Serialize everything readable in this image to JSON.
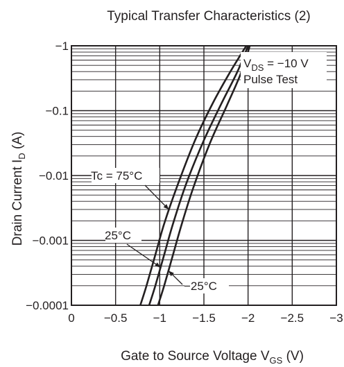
{
  "chart_data": {
    "type": "line",
    "title": "Typical Transfer Characteristics (2)",
    "xlabel": {
      "main": "Gate to Source Voltage",
      "symbol": "V",
      "subscript": "GS",
      "unit": "(V)"
    },
    "ylabel": {
      "main": "Drain Current",
      "symbol": "I",
      "subscript": "D",
      "unit": "(A)"
    },
    "xlim": [
      0,
      -3
    ],
    "ylim_abs": [
      0.0001,
      1
    ],
    "y_scale": "log",
    "grid": true,
    "x_ticks": [
      {
        "value": 0,
        "label": "0"
      },
      {
        "value": -0.5,
        "label": "−0.5"
      },
      {
        "value": -1,
        "label": "−1"
      },
      {
        "value": -1.5,
        "label": "−1.5"
      },
      {
        "value": -2,
        "label": "−2"
      },
      {
        "value": -2.5,
        "label": "−2.5"
      },
      {
        "value": -3,
        "label": "−3"
      }
    ],
    "y_ticks": [
      {
        "value": 1,
        "label": "−1"
      },
      {
        "value": 0.1,
        "label": "−0.1"
      },
      {
        "value": 0.01,
        "label": "−0.01"
      },
      {
        "value": 0.001,
        "label": "−0.001"
      },
      {
        "value": 0.0001,
        "label": "−0.0001"
      }
    ],
    "conditions": {
      "vds_symbol": "V",
      "vds_subscript": "DS",
      "vds_value": "= −10 V",
      "pulse": "Pulse Test"
    },
    "series": [
      {
        "name": "Tc = 75°C",
        "vgs": [
          -0.78,
          -0.85,
          -0.95,
          -1.05,
          -1.2,
          -1.4,
          -1.6,
          -1.8,
          -1.98
        ],
        "id_abs": [
          0.0001,
          0.0002,
          0.0006,
          0.0018,
          0.007,
          0.035,
          0.13,
          0.4,
          1.0
        ]
      },
      {
        "name": "25°C",
        "vgs": [
          -0.88,
          -0.95,
          -1.05,
          -1.15,
          -1.3,
          -1.5,
          -1.7,
          -1.88,
          -2.0
        ],
        "id_abs": [
          0.0001,
          0.0002,
          0.0006,
          0.0018,
          0.0075,
          0.035,
          0.13,
          0.4,
          1.0
        ]
      },
      {
        "name": "−25°C",
        "vgs": [
          -0.98,
          -1.05,
          -1.15,
          -1.25,
          -1.38,
          -1.57,
          -1.76,
          -1.92,
          -2.02
        ],
        "id_abs": [
          0.0001,
          0.0002,
          0.0006,
          0.0018,
          0.0065,
          0.032,
          0.12,
          0.38,
          1.0
        ]
      }
    ],
    "annotations": [
      {
        "label": "Tc = 75°C",
        "series": 0
      },
      {
        "label": "25°C",
        "series": 1
      },
      {
        "label": "−25°C",
        "series": 2
      }
    ]
  }
}
